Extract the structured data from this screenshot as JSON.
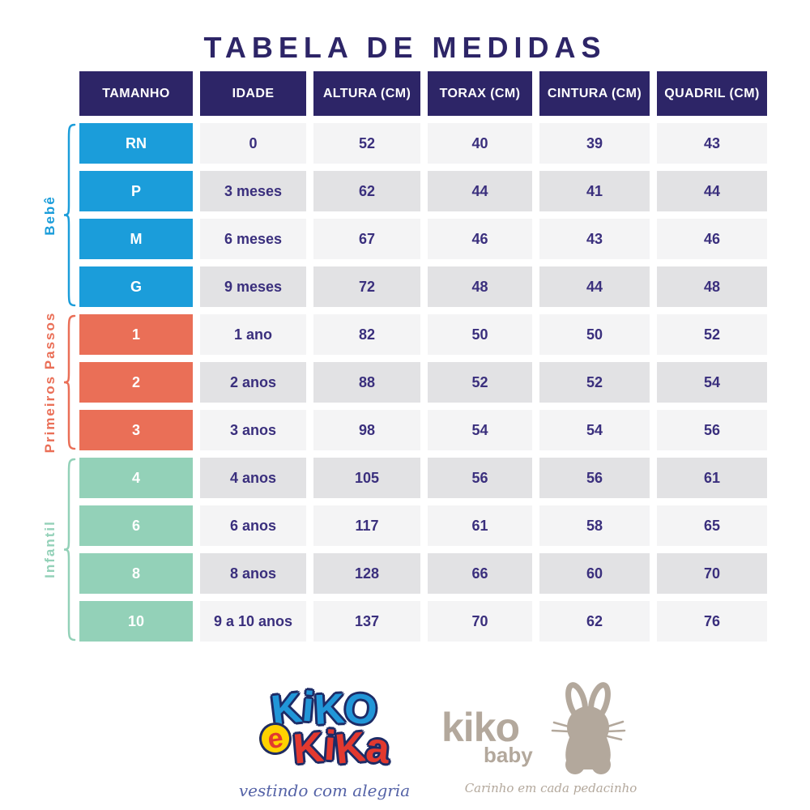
{
  "title": "TABELA DE MEDIDAS",
  "colors": {
    "navy": "#2d2567",
    "cell_text": "#3a2f7d",
    "row_light": "#f4f4f5",
    "row_dark": "#e2e2e4",
    "bebe": "#1b9dda",
    "primeiros": "#ea6f57",
    "infantil": "#93d1b8",
    "taupe": "#b3a89c",
    "script_blue": "#5563a7",
    "logo_blue": "#2196d8",
    "logo_red": "#e2392f",
    "logo_outline": "#1d2b66",
    "yellow": "#ffd200"
  },
  "table": {
    "headers": [
      "TAMANHO",
      "IDADE",
      "ALTURA (CM)",
      "TORAX (CM)",
      "CINTURA (CM)",
      "QUADRIL (CM)"
    ],
    "groups": [
      {
        "label": "Bebê",
        "rows": [
          [
            "RN",
            "0",
            "52",
            "40",
            "39",
            "43"
          ],
          [
            "P",
            "3 meses",
            "62",
            "44",
            "41",
            "44"
          ],
          [
            "M",
            "6 meses",
            "67",
            "46",
            "43",
            "46"
          ],
          [
            "G",
            "9 meses",
            "72",
            "48",
            "44",
            "48"
          ]
        ]
      },
      {
        "label": "Primeiros Passos",
        "rows": [
          [
            "1",
            "1 ano",
            "82",
            "50",
            "50",
            "52"
          ],
          [
            "2",
            "2 anos",
            "88",
            "52",
            "52",
            "54"
          ],
          [
            "3",
            "3 anos",
            "98",
            "54",
            "54",
            "56"
          ]
        ]
      },
      {
        "label": "Infantil",
        "rows": [
          [
            "4",
            "4 anos",
            "105",
            "56",
            "56",
            "61"
          ],
          [
            "6",
            "6 anos",
            "117",
            "61",
            "58",
            "65"
          ],
          [
            "8",
            "8 anos",
            "128",
            "66",
            "60",
            "70"
          ],
          [
            "10",
            "9 a 10 anos",
            "137",
            "70",
            "62",
            "76"
          ]
        ]
      }
    ]
  },
  "logos": {
    "kiko_e_kika": {
      "word1": "KiKO",
      "conj": "e",
      "word2": "KiKa",
      "tagline": "vestindo com alegria"
    },
    "kiko_baby": {
      "name": "kiko",
      "sub": "baby",
      "tagline": "Carinho em cada pedacinho"
    }
  }
}
